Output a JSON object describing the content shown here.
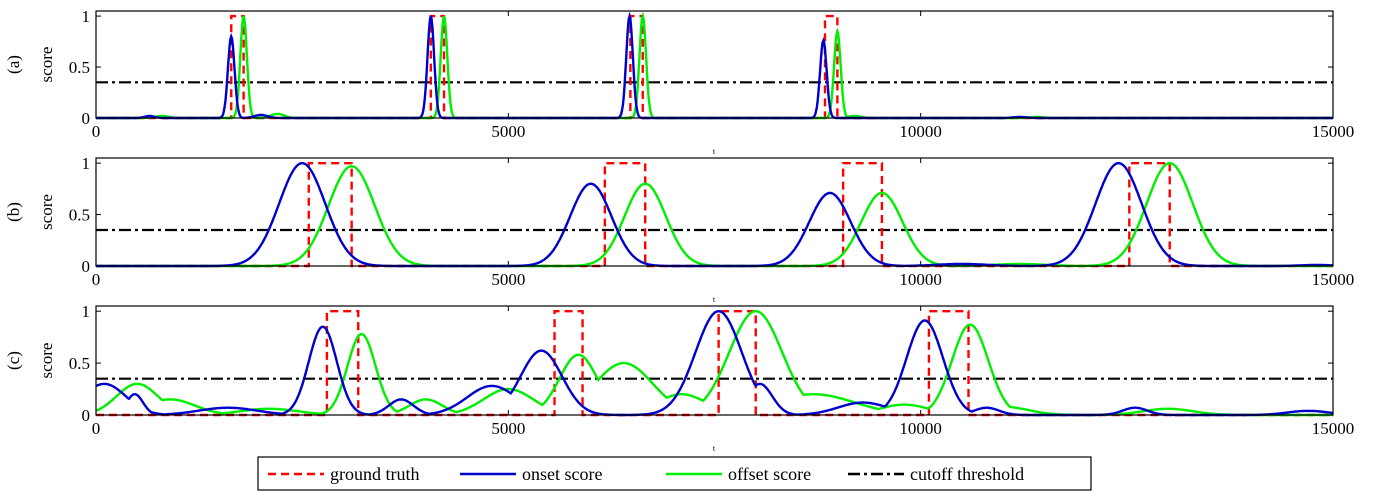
{
  "chart_data": [
    {
      "type": "line",
      "panel_label": "(a)",
      "ylabel": "score",
      "xlabel": "t",
      "xlim": [
        0,
        15000
      ],
      "ylim": [
        0,
        1.05
      ],
      "xticks": [
        "0",
        "5000",
        "10000",
        "15000"
      ],
      "yticks": [
        "0",
        "0.5",
        "1"
      ],
      "threshold": 0.35,
      "ground_truth": [
        [
          1640,
          1790
        ],
        [
          4060,
          4220
        ],
        [
          6480,
          6630
        ],
        [
          8840,
          8990
        ]
      ],
      "onset_peaks": [
        [
          1640,
          0.8,
          40
        ],
        [
          4060,
          1.0,
          40
        ],
        [
          6470,
          1.0,
          40
        ],
        [
          8820,
          0.76,
          40
        ],
        [
          650,
          0.02,
          60
        ],
        [
          2000,
          0.03,
          80
        ],
        [
          11200,
          0.01,
          80
        ]
      ],
      "offset_peaks": [
        [
          1790,
          1.0,
          40
        ],
        [
          4220,
          1.0,
          40
        ],
        [
          6630,
          1.0,
          40
        ],
        [
          8990,
          0.85,
          40
        ],
        [
          800,
          0.02,
          80
        ],
        [
          2200,
          0.04,
          80
        ],
        [
          9200,
          0.02,
          80
        ],
        [
          11400,
          0.01,
          80
        ]
      ]
    },
    {
      "type": "line",
      "panel_label": "(b)",
      "ylabel": "score",
      "xlabel": "t",
      "xlim": [
        0,
        15000
      ],
      "ylim": [
        0,
        1.05
      ],
      "xticks": [
        "0",
        "5000",
        "10000",
        "15000"
      ],
      "yticks": [
        "0",
        "0.5",
        "1"
      ],
      "threshold": 0.35,
      "ground_truth": [
        [
          2580,
          3100
        ],
        [
          6170,
          6660
        ],
        [
          9060,
          9530
        ],
        [
          12530,
          13020
        ]
      ],
      "onset_peaks": [
        [
          2500,
          1.0,
          280
        ],
        [
          6000,
          0.8,
          250
        ],
        [
          8900,
          0.71,
          250
        ],
        [
          12400,
          1.0,
          280
        ],
        [
          10500,
          0.02,
          300
        ],
        [
          14800,
          0.01,
          200
        ]
      ],
      "offset_peaks": [
        [
          3100,
          0.97,
          280
        ],
        [
          6660,
          0.8,
          250
        ],
        [
          9530,
          0.71,
          250
        ],
        [
          13020,
          1.0,
          280
        ],
        [
          11200,
          0.02,
          300
        ]
      ]
    },
    {
      "type": "line",
      "panel_label": "(c)",
      "ylabel": "score",
      "xlabel": "t",
      "xlim": [
        0,
        15000
      ],
      "ylim": [
        0,
        1.05
      ],
      "xticks": [
        "0",
        "5000",
        "10000",
        "15000"
      ],
      "yticks": [
        "0",
        "0.5",
        "1"
      ],
      "threshold": 0.35,
      "ground_truth": [
        [
          2800,
          3180
        ],
        [
          5560,
          5900
        ],
        [
          7550,
          8000
        ],
        [
          10100,
          10580
        ]
      ],
      "onset_peaks": [
        [
          2750,
          0.85,
          170
        ],
        [
          5400,
          0.62,
          250
        ],
        [
          7550,
          1.0,
          280
        ],
        [
          10050,
          0.91,
          220
        ],
        [
          100,
          0.3,
          260
        ],
        [
          470,
          0.2,
          100
        ],
        [
          1600,
          0.07,
          350
        ],
        [
          3700,
          0.15,
          150
        ],
        [
          4800,
          0.28,
          300
        ],
        [
          8050,
          0.3,
          150
        ],
        [
          9300,
          0.12,
          300
        ],
        [
          10800,
          0.07,
          150
        ],
        [
          12600,
          0.07,
          150
        ],
        [
          14700,
          0.04,
          250
        ]
      ],
      "offset_peaks": [
        [
          3220,
          0.78,
          170
        ],
        [
          5850,
          0.58,
          230
        ],
        [
          8000,
          1.0,
          320
        ],
        [
          10600,
          0.87,
          220
        ],
        [
          500,
          0.3,
          250
        ],
        [
          900,
          0.15,
          300
        ],
        [
          2100,
          0.06,
          350
        ],
        [
          4000,
          0.15,
          200
        ],
        [
          5000,
          0.25,
          300
        ],
        [
          6400,
          0.5,
          350
        ],
        [
          7100,
          0.2,
          300
        ],
        [
          8700,
          0.2,
          500
        ],
        [
          9800,
          0.1,
          300
        ],
        [
          11000,
          0.08,
          300
        ],
        [
          13000,
          0.06,
          300
        ]
      ]
    }
  ],
  "legend": {
    "placement": "bottom-center",
    "items": [
      {
        "label": "ground truth",
        "color": "#ff0000",
        "dash": "dashed"
      },
      {
        "label": "onset score",
        "color": "#0000cc",
        "dash": "solid"
      },
      {
        "label": "offset score",
        "color": "#00ee00",
        "dash": "solid"
      },
      {
        "label": "cutoff threshold",
        "color": "#000000",
        "dash": "dashdot"
      }
    ]
  }
}
